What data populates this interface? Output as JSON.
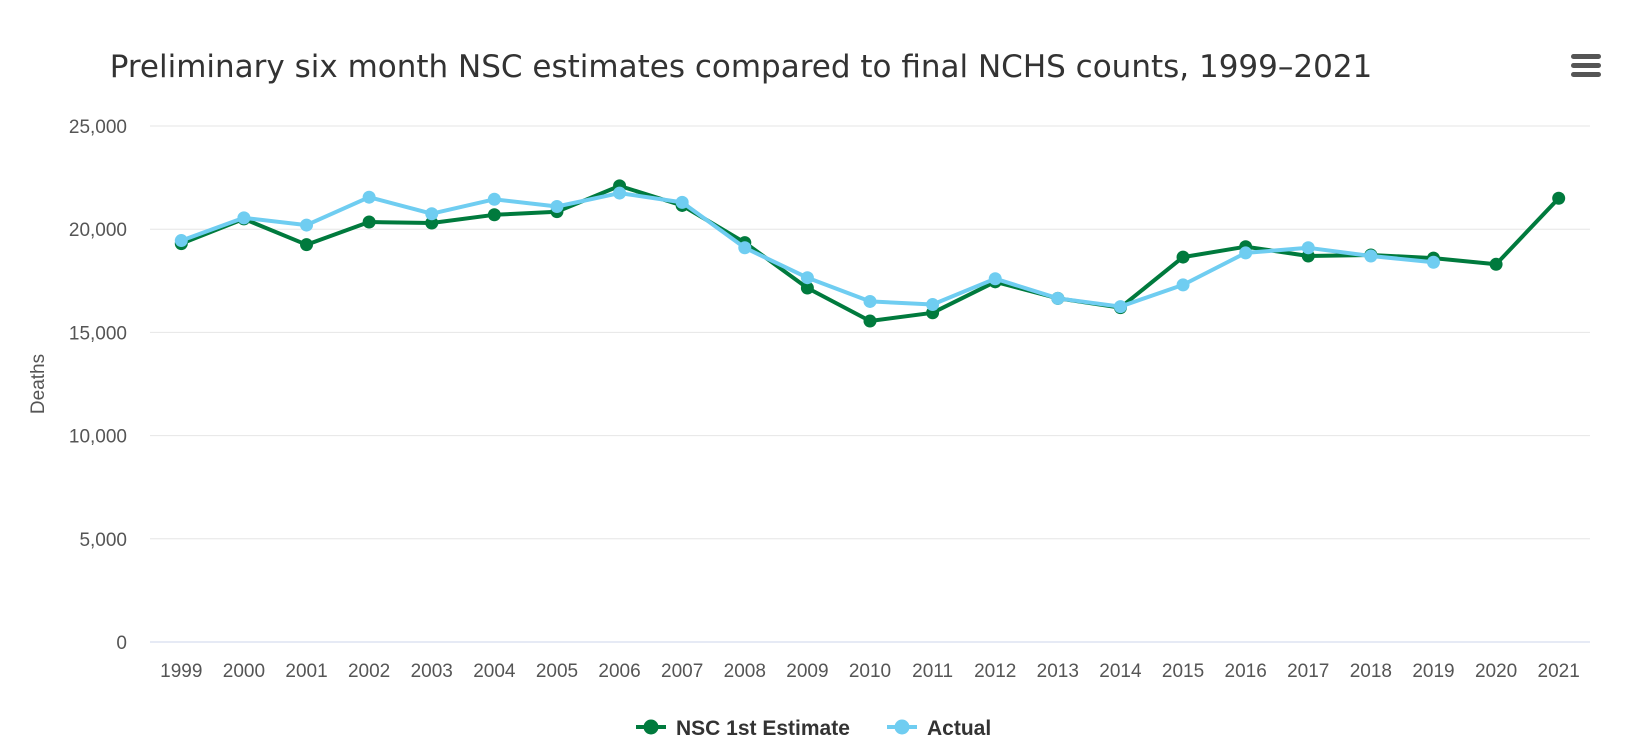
{
  "chart_data": {
    "type": "line",
    "title": "Preliminary six month NSC estimates compared to final NCHS counts, 1999–2021",
    "ylabel": "Deaths",
    "xlabel": "",
    "ylim": [
      0,
      25000
    ],
    "yticks": [
      0,
      5000,
      10000,
      15000,
      20000,
      25000
    ],
    "ytick_labels": [
      "0",
      "5,000",
      "10,000",
      "15,000",
      "20,000",
      "25,000"
    ],
    "grid": true,
    "legend_position": "bottom-center",
    "categories": [
      "1999",
      "2000",
      "2001",
      "2002",
      "2003",
      "2004",
      "2005",
      "2006",
      "2007",
      "2008",
      "2009",
      "2010",
      "2011",
      "2012",
      "2013",
      "2014",
      "2015",
      "2016",
      "2017",
      "2018",
      "2019",
      "2020",
      "2021"
    ],
    "series": [
      {
        "name": "NSC 1st Estimate",
        "color": "#007a3d",
        "values": [
          19300,
          20500,
          19250,
          20350,
          20300,
          20700,
          20850,
          22100,
          21150,
          19350,
          17150,
          15550,
          15950,
          17450,
          16650,
          16200,
          18650,
          19150,
          18700,
          18750,
          18600,
          18300,
          21500
        ]
      },
      {
        "name": "Actual",
        "color": "#6fcdf1",
        "values": [
          19450,
          20550,
          20200,
          21550,
          20750,
          21450,
          21100,
          21750,
          21300,
          19100,
          17650,
          16500,
          16350,
          17600,
          16650,
          16250,
          17300,
          18850,
          19100,
          18700,
          18400,
          null,
          null
        ]
      }
    ]
  },
  "menu": {
    "icon": "hamburger-menu-icon"
  }
}
